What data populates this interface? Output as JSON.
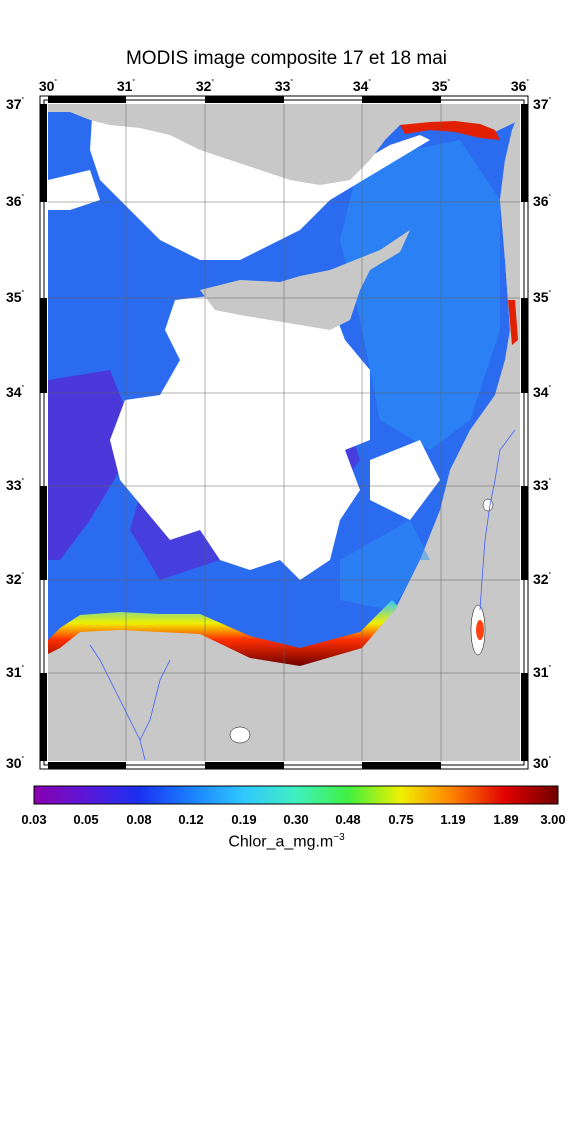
{
  "title": "MODIS image composite 17 et 18 mai",
  "map": {
    "lon_labels": [
      "30",
      "31",
      "32",
      "33",
      "34",
      "35",
      "36"
    ],
    "lat_labels": [
      "37",
      "36",
      "35",
      "34",
      "33",
      "32",
      "31",
      "30"
    ],
    "lon_range": [
      30,
      36
    ],
    "lat_range": [
      30,
      37
    ],
    "land_color": "#c8c8c8",
    "cloud_color": "#ffffff",
    "sea_color": "#2a6bf0",
    "gridlines": true
  },
  "colorbar": {
    "ticks": [
      "0.03",
      "0.05",
      "0.08",
      "0.12",
      "0.19",
      "0.30",
      "0.48",
      "0.75",
      "1.19",
      "1.89",
      "3.00"
    ],
    "label_base": "Chlor_a_mg.m",
    "label_exp": "−3",
    "colors": [
      "#8a00b0",
      "#5a18d8",
      "#1a30f0",
      "#1a80ff",
      "#30c8ff",
      "#40f0c0",
      "#40f040",
      "#f0f000",
      "#ff8000",
      "#e00000",
      "#700000"
    ]
  }
}
